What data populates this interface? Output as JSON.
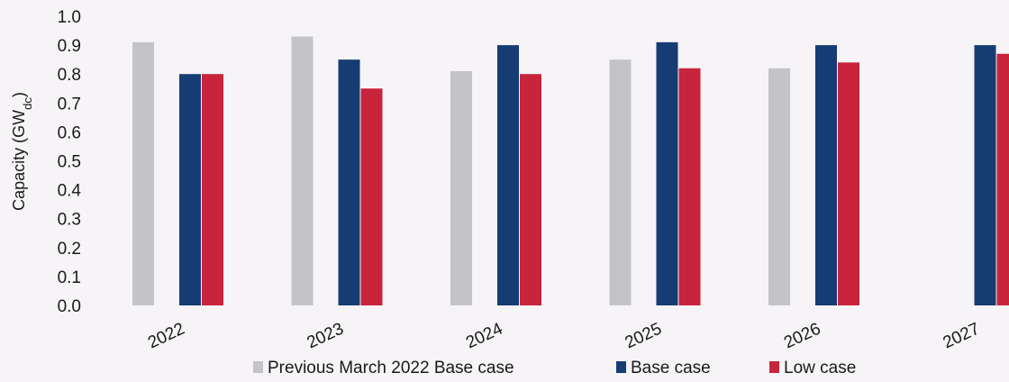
{
  "chart_data": {
    "type": "bar",
    "ylabel": "Capacity (GW",
    "ylabel_sub": "dc",
    "ylabel_suffix": ")",
    "ylim": [
      0,
      1.0
    ],
    "yticks": [
      "0.0",
      "0.1",
      "0.2",
      "0.3",
      "0.4",
      "0.5",
      "0.6",
      "0.7",
      "0.8",
      "0.9",
      "1.0"
    ],
    "grid": false,
    "legend_position": "bottom",
    "categories": [
      "2022",
      "2023",
      "2024",
      "2025",
      "2026",
      "2027"
    ],
    "series": [
      {
        "name": "Previous March 2022 Base case",
        "color": "#c4c4c6",
        "values": [
          0.91,
          0.93,
          0.81,
          0.85,
          0.82,
          null
        ]
      },
      {
        "name": "Base case",
        "color": "#163c74",
        "values": [
          0.8,
          0.85,
          0.9,
          0.91,
          0.9,
          0.9
        ]
      },
      {
        "name": "Low case",
        "color": "#c8243c",
        "values": [
          0.8,
          0.75,
          0.8,
          0.82,
          0.84,
          0.87
        ]
      }
    ]
  }
}
